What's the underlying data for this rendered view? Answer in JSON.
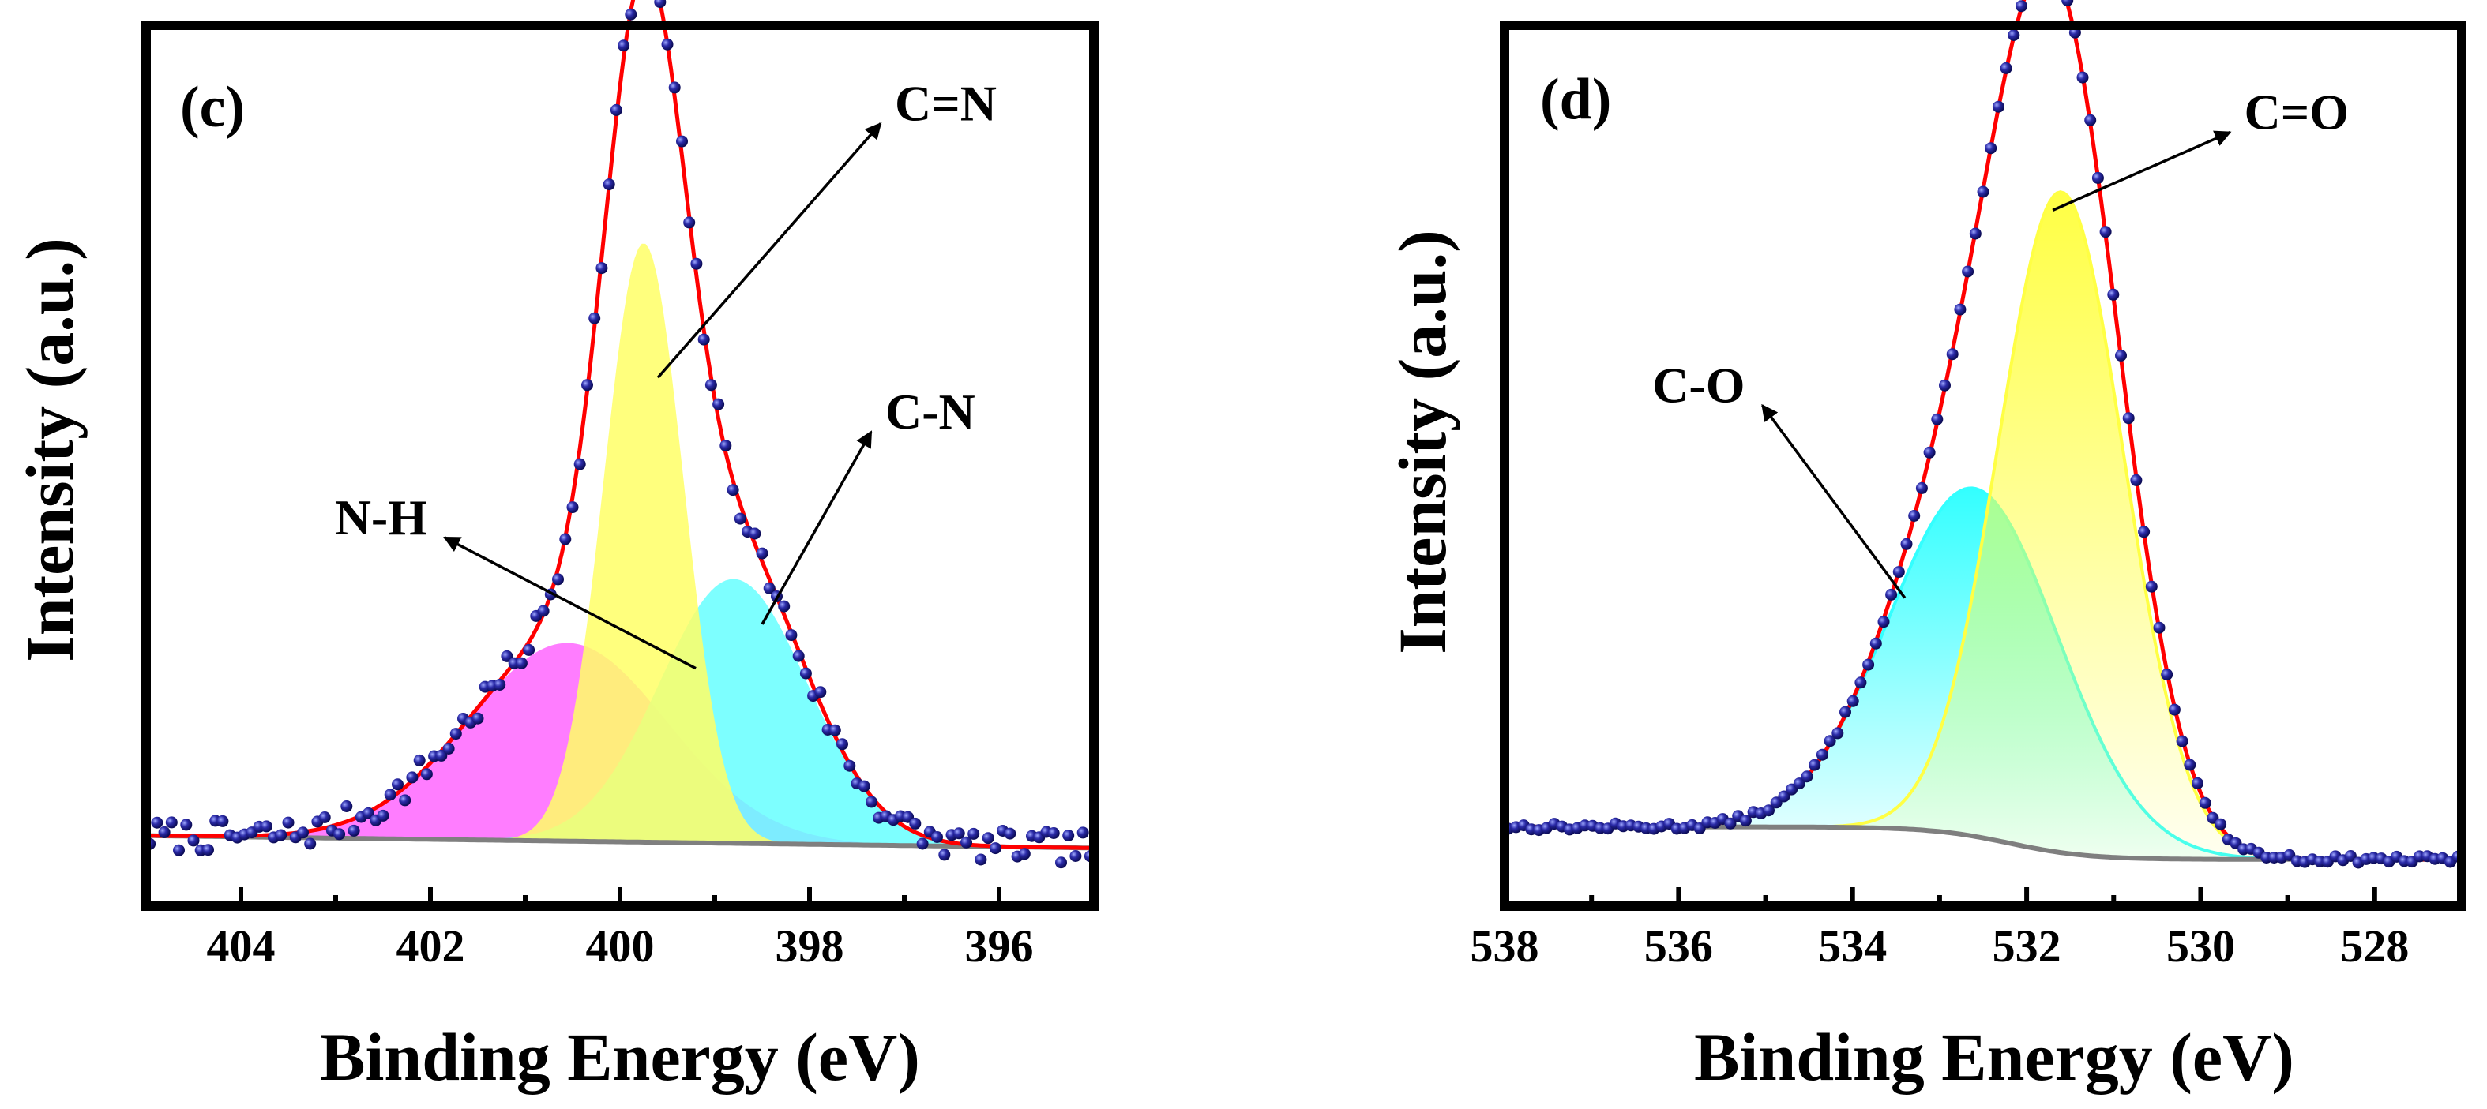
{
  "figure": {
    "panel_labels": [
      "(c)",
      "(d)"
    ]
  },
  "chart_data": [
    {
      "type": "line",
      "panel": "(c)",
      "title": "",
      "xlabel": "Binding Energy (eV)",
      "ylabel": "Intensity (a.u.)",
      "xlim": [
        405,
        395
      ],
      "ylim": [
        0,
        1
      ],
      "x_reversed": true,
      "x_ticks": [
        404,
        402,
        400,
        398,
        396
      ],
      "x_tick_labels": [
        "404",
        "402",
        "400",
        "398",
        "396"
      ],
      "y_ticks_shown": false,
      "baseline": {
        "start": 0.08,
        "end": 0.066
      },
      "components": [
        {
          "name": "N-H",
          "center": 400.55,
          "height": 0.225,
          "sigma": 1.05,
          "fill": "#ff66ff",
          "gradient": false
        },
        {
          "name": "C-N",
          "center": 398.8,
          "height": 0.3,
          "sigma": 0.78,
          "fill": "#66ffff",
          "gradient": false
        },
        {
          "name": "C=N",
          "center": 399.75,
          "height": 0.68,
          "sigma": 0.42,
          "fill": "#ffff66",
          "gradient": false
        }
      ],
      "annotations": [
        {
          "text": "C=N",
          "target": [
            399.6,
            0.6
          ],
          "label_pos": [
            397.1,
            0.91
          ]
        },
        {
          "text": "C-N",
          "target": [
            398.5,
            0.32
          ],
          "label_pos": [
            397.2,
            0.56
          ]
        },
        {
          "text": "N-H",
          "target": [
            399.2,
            0.27
          ],
          "label_pos": [
            402.0,
            0.44
          ]
        }
      ],
      "fit_color": "#ff0000",
      "data_color": "#1a1a8c",
      "baseline_color": "#7f7f7f",
      "n_points": 130,
      "noise_amp": 0.018,
      "noise_seed": 7
    },
    {
      "type": "line",
      "panel": "(d)",
      "title": "",
      "xlabel": "Binding Energy (eV)",
      "ylabel": "Intensity (a.u.)",
      "xlim": [
        538,
        527
      ],
      "ylim": [
        0,
        1
      ],
      "x_reversed": true,
      "x_ticks": [
        538,
        536,
        534,
        532,
        530,
        528
      ],
      "x_tick_labels": [
        "538",
        "536",
        "534",
        "532",
        "530",
        "528"
      ],
      "y_ticks_shown": false,
      "baseline": {
        "start": 0.09,
        "end": 0.053,
        "step_center": 532.2,
        "step_width": 1.0
      },
      "components": [
        {
          "name": "C-O",
          "center": 532.6,
          "height": 0.395,
          "sigma": 0.98,
          "fill": "#33ffff",
          "gradient": true
        },
        {
          "name": "C=O",
          "center": 531.6,
          "height": 0.75,
          "sigma": 0.72,
          "fill": "#ffff44",
          "gradient": true
        }
      ],
      "annotations": [
        {
          "text": "C=O",
          "target": [
            531.7,
            0.79
          ],
          "label_pos": [
            529.5,
            0.9
          ]
        },
        {
          "text": "C-O",
          "target": [
            533.4,
            0.35
          ],
          "label_pos": [
            535.2,
            0.59
          ]
        }
      ],
      "fit_color": "#ff0000",
      "data_color": "#1a1a8c",
      "baseline_color": "#7f7f7f",
      "n_points": 125,
      "noise_amp": 0.004,
      "noise_seed": 13
    }
  ]
}
